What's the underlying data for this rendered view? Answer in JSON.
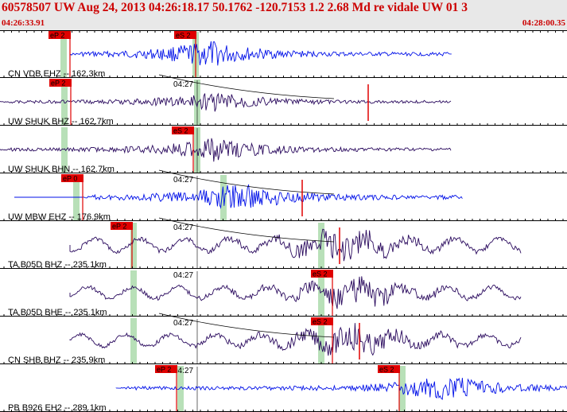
{
  "header": {
    "title": "60578507 UW Aug 24, 2013 04:26:18.17    50.1762 -120.7153  1.2 2.68 Md re vidale UW 01    3",
    "time_start": "04:26:33.91",
    "time_end": "04:28:00.35"
  },
  "colors": {
    "panel_bg": "#e8e8e8",
    "header_text": "#cc0000",
    "blue_trace": "#0010e8",
    "purple_trace": "#2a0a5e",
    "pick": "#e00000",
    "window": "#b8e0b8"
  },
  "minute_label": "04:27",
  "traces": [
    {
      "label": "CN VDB EHZ -- 162.3km",
      "color": "blue",
      "amp": 0.45,
      "minute": false,
      "picks": [
        {
          "text": "eP 2",
          "x": 88
        },
        {
          "text": "eS 2",
          "x": 246
        }
      ],
      "windows": [
        80,
        246
      ],
      "red_lines": [],
      "signal_start": 89,
      "signal_end": 568,
      "peak": 262,
      "lead": 0,
      "curve": false
    },
    {
      "label": "UW SHUK BHZ -- 162.7km",
      "color": "purple",
      "amp": 0.35,
      "minute": true,
      "picks": [
        {
          "text": "eP 2",
          "x": 89
        }
      ],
      "windows": [
        81,
        248
      ],
      "red_lines": [
        463
      ],
      "signal_start": 0,
      "signal_end": 568,
      "peak": 270,
      "lead": 0,
      "curve": true
    },
    {
      "label": "UW SHUK BHN -- 162.7km",
      "color": "purple",
      "amp": 0.4,
      "minute": true,
      "picks": [
        {
          "text": "eS 2",
          "x": 243
        }
      ],
      "windows": [
        81,
        248
      ],
      "red_lines": [],
      "signal_start": 0,
      "signal_end": 568,
      "peak": 270,
      "lead": 0,
      "curve": false
    },
    {
      "label": "UW MBW EHZ -- 176.9km",
      "color": "blue",
      "amp": 0.5,
      "minute": true,
      "picks": [
        {
          "text": "eP 0",
          "x": 104
        }
      ],
      "windows": [
        96,
        281
      ],
      "red_lines": [
        380
      ],
      "signal_start": 104,
      "signal_end": 582,
      "peak": 300,
      "lead": 18,
      "curve": true
    },
    {
      "label": "TA B05D BHZ -- 235.1km",
      "color": "purple",
      "amp": 0.55,
      "minute": true,
      "picks": [
        {
          "text": "eP 2",
          "x": 166
        }
      ],
      "windows": [
        168,
        404
      ],
      "red_lines": [
        427
      ],
      "signal_start": 88,
      "signal_end": 655,
      "peak": 430,
      "lead": 0,
      "curve": true
    },
    {
      "label": "TA B05D BHE -- 235.1km",
      "color": "purple",
      "amp": 0.5,
      "minute": true,
      "picks": [
        {
          "text": "eS 2",
          "x": 418
        }
      ],
      "windows": [
        168,
        404
      ],
      "red_lines": [],
      "signal_start": 88,
      "signal_end": 655,
      "peak": 445,
      "lead": 0,
      "curve": false
    },
    {
      "label": "CN SHB BHZ -- 235.9km",
      "color": "purple",
      "amp": 0.5,
      "minute": true,
      "picks": [
        {
          "text": "eS 2",
          "x": 418
        }
      ],
      "windows": [
        168,
        404
      ],
      "red_lines": [
        452
      ],
      "signal_start": 88,
      "signal_end": 655,
      "peak": 445,
      "lead": 0,
      "curve": true
    },
    {
      "label": "PB B926 EH2 -- 289.1km",
      "color": "blue",
      "amp": 0.45,
      "minute": true,
      "picks": [
        {
          "text": "eP 2",
          "x": 222
        },
        {
          "text": "eS 2",
          "x": 502
        }
      ],
      "windows": [
        227,
        506
      ],
      "red_lines": [],
      "signal_start": 146,
      "signal_end": 713,
      "peak": 560,
      "lead": 0,
      "curve": false
    }
  ]
}
